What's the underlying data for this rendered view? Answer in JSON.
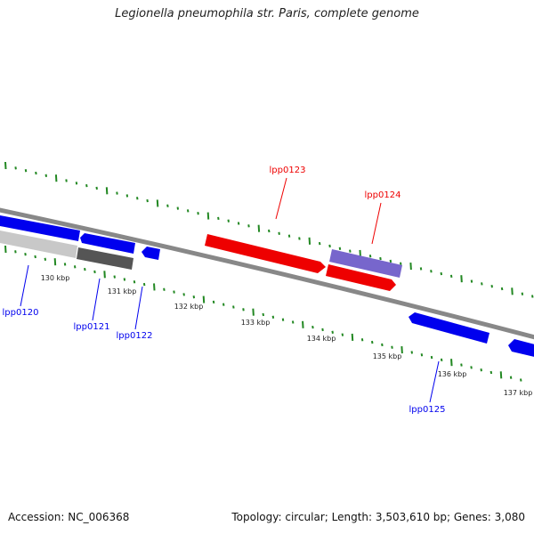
{
  "title": "Legionella pneumophila str. Paris, complete genome",
  "footer": {
    "accession": "Accession: NC_006368",
    "summary": "Topology: circular; Length: 3,503,610 bp; Genes: 3,080"
  },
  "colors": {
    "forward_gene": "#ee0000",
    "reverse_gene": "#0000ee",
    "forward_gene_light": "#7766cc",
    "pseudo_gene_light": "#c8c8c8",
    "pseudo_gene_dark": "#555555",
    "backbone": "#888888",
    "ticks": "#228822"
  },
  "ticks": [
    "130 kbp",
    "131 kbp",
    "132 kbp",
    "133 kbp",
    "134 kbp",
    "135 kbp",
    "136 kbp",
    "137 kbp"
  ],
  "genes": [
    {
      "label": "",
      "strand": "-"
    },
    {
      "label": "lpp0120",
      "strand": "-"
    },
    {
      "label": "lpp0121",
      "strand": "-"
    },
    {
      "label": "lpp0122",
      "strand": "-"
    },
    {
      "label": "lpp0123",
      "strand": "+"
    },
    {
      "label": "lpp0124",
      "strand": "+"
    },
    {
      "label": "lpp0125",
      "strand": "-"
    },
    {
      "label": "",
      "strand": "-"
    }
  ]
}
